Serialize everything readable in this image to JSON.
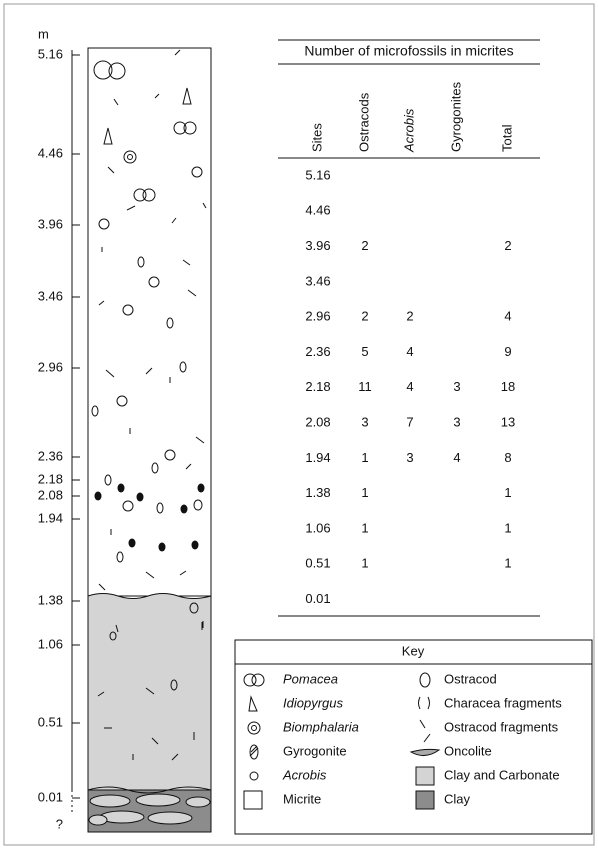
{
  "scale": {
    "unit": "m",
    "labels": [
      "5.16",
      "4.46",
      "3.96",
      "3.46",
      "2.96",
      "2.36",
      "2.18",
      "2.08",
      "1.94",
      "1.38",
      "1.06",
      "0.51",
      "0.01",
      "?"
    ]
  },
  "table": {
    "title": "Number of microfossils in micrites",
    "headers": [
      "Sites",
      "Ostracods",
      "Acrobis",
      "Gyrogonites",
      "Total"
    ],
    "rows": [
      [
        5.16,
        null,
        null,
        null,
        null
      ],
      [
        4.46,
        null,
        null,
        null,
        null
      ],
      [
        3.96,
        2,
        null,
        null,
        2
      ],
      [
        3.46,
        null,
        null,
        null,
        null
      ],
      [
        2.96,
        2,
        2,
        null,
        4
      ],
      [
        2.36,
        5,
        4,
        null,
        9
      ],
      [
        2.18,
        11,
        4,
        3,
        18
      ],
      [
        2.08,
        3,
        7,
        3,
        13
      ],
      [
        1.94,
        1,
        3,
        4,
        8
      ],
      [
        1.38,
        1,
        null,
        null,
        1
      ],
      [
        1.06,
        1,
        null,
        null,
        1
      ],
      [
        0.51,
        1,
        null,
        null,
        1
      ],
      [
        0.01,
        null,
        null,
        null,
        null
      ]
    ]
  },
  "key": {
    "title": "Key",
    "left": [
      "Pomacea",
      "Idiopyrgus",
      "Biomphalaria",
      "Gyrogonite",
      "Acrobis",
      "Micrite"
    ],
    "right": [
      "Ostracod",
      "Characea fragments",
      "Ostracod fragments",
      "Oncolite",
      "Clay and Carbonate",
      "Clay"
    ]
  }
}
